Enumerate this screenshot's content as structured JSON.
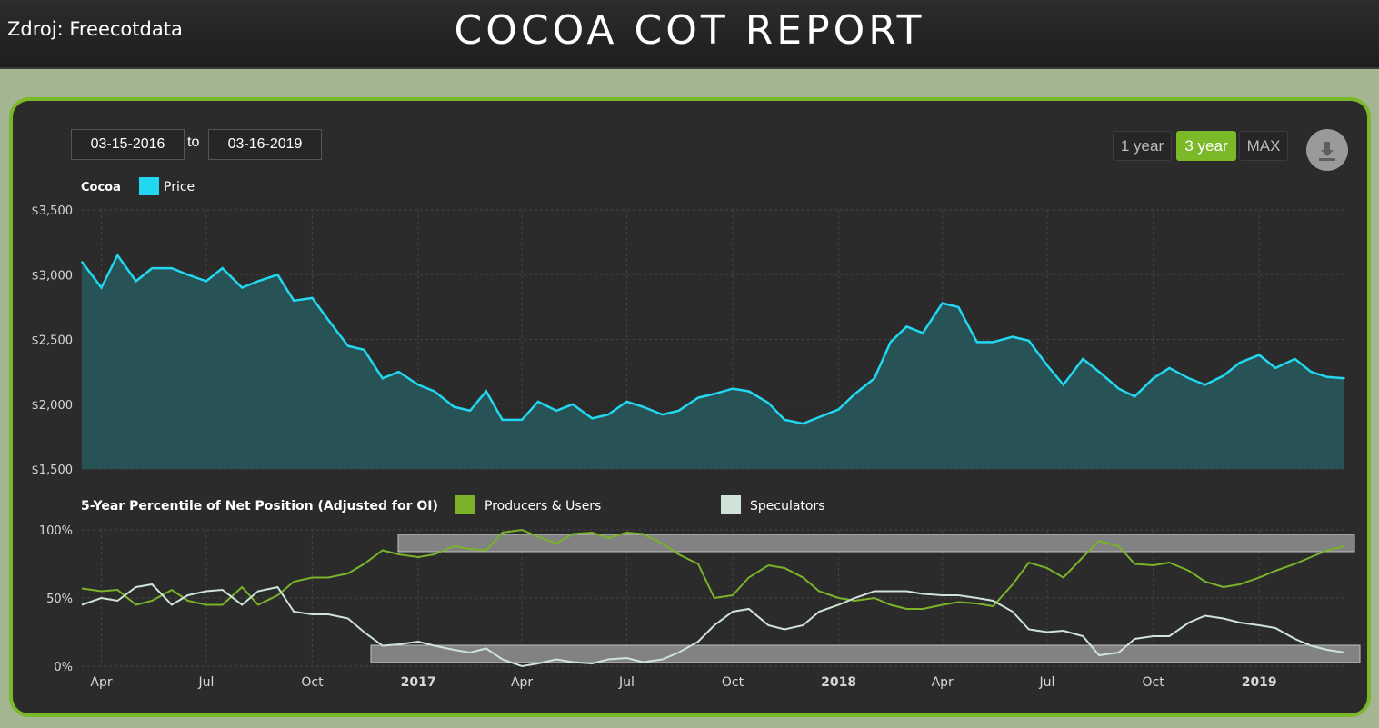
{
  "header": {
    "source": "Zdroj: Freecotdata",
    "title": "COCOA COT REPORT"
  },
  "controls": {
    "date_from": "03-15-2016",
    "to_label": "to",
    "date_to": "03-16-2019",
    "ranges": [
      "1 year",
      "3 year",
      "MAX"
    ],
    "active_range": "3 year",
    "download_icon": "download-icon"
  },
  "colors": {
    "accent": "#7cb929",
    "price_line": "#22d8f0",
    "price_fill": "#275458",
    "producers": "#7ab32a",
    "speculators": "#cfe3d8",
    "band": "#8a8a8a"
  },
  "chart_data": [
    {
      "type": "area",
      "legend_title": "Cocoa",
      "series": [
        {
          "name": "Price"
        }
      ],
      "ylim": [
        1500,
        3500
      ],
      "y_ticks": [
        "$3,500",
        "$3,000",
        "$2,500",
        "$2,000",
        "$1,500"
      ],
      "x_range": [
        "2016-03-15",
        "2019-03-16"
      ],
      "x_ticks": [
        "Apr",
        "Jul",
        "Oct",
        "2017",
        "Apr",
        "Jul",
        "Oct",
        "2018",
        "Apr",
        "Jul",
        "Oct",
        "2019"
      ],
      "x": [
        "2016-03-15",
        "2016-04-01",
        "2016-04-15",
        "2016-05-01",
        "2016-05-15",
        "2016-06-01",
        "2016-06-15",
        "2016-07-01",
        "2016-07-15",
        "2016-08-01",
        "2016-08-15",
        "2016-09-01",
        "2016-09-15",
        "2016-10-01",
        "2016-10-15",
        "2016-11-01",
        "2016-11-15",
        "2016-12-01",
        "2016-12-15",
        "2017-01-01",
        "2017-01-15",
        "2017-02-01",
        "2017-02-15",
        "2017-03-01",
        "2017-03-15",
        "2017-04-01",
        "2017-04-15",
        "2017-05-01",
        "2017-05-15",
        "2017-06-01",
        "2017-06-15",
        "2017-07-01",
        "2017-07-15",
        "2017-08-01",
        "2017-08-15",
        "2017-09-01",
        "2017-09-15",
        "2017-10-01",
        "2017-10-15",
        "2017-11-01",
        "2017-11-15",
        "2017-12-01",
        "2017-12-15",
        "2018-01-01",
        "2018-01-15",
        "2018-02-01",
        "2018-02-15",
        "2018-03-01",
        "2018-03-15",
        "2018-04-01",
        "2018-04-15",
        "2018-05-01",
        "2018-05-15",
        "2018-06-01",
        "2018-06-15",
        "2018-07-01",
        "2018-07-15",
        "2018-08-01",
        "2018-08-15",
        "2018-09-01",
        "2018-09-15",
        "2018-10-01",
        "2018-10-15",
        "2018-11-01",
        "2018-11-15",
        "2018-12-01",
        "2018-12-15",
        "2019-01-01",
        "2019-01-15",
        "2019-02-01",
        "2019-02-15",
        "2019-03-01",
        "2019-03-16"
      ],
      "values": [
        3100,
        2900,
        3150,
        2950,
        3050,
        3050,
        3000,
        2950,
        3050,
        2900,
        2950,
        3000,
        2800,
        2820,
        2650,
        2450,
        2420,
        2200,
        2250,
        2150,
        2100,
        1980,
        1950,
        2100,
        1880,
        1880,
        2020,
        1950,
        2000,
        1890,
        1920,
        2020,
        1980,
        1920,
        1950,
        2050,
        2080,
        2120,
        2100,
        2010,
        1880,
        1850,
        1900,
        1960,
        2080,
        2200,
        2480,
        2600,
        2550,
        2780,
        2750,
        2480,
        2480,
        2520,
        2490,
        2300,
        2150,
        2350,
        2250,
        2120,
        2060,
        2200,
        2280,
        2200,
        2150,
        2220,
        2320,
        2380,
        2280,
        2350,
        2250,
        2210,
        2200
      ]
    },
    {
      "type": "line",
      "legend_title": "5-Year Percentile of Net Position (Adjusted for OI)",
      "ylim": [
        0,
        100
      ],
      "y_ticks": [
        "100%",
        "50%",
        "0%"
      ],
      "series": [
        {
          "name": "Producers & Users",
          "values": [
            57,
            55,
            56,
            45,
            48,
            56,
            48,
            45,
            45,
            58,
            45,
            52,
            62,
            65,
            65,
            68,
            75,
            85,
            82,
            80,
            82,
            88,
            86,
            85,
            98,
            100,
            95,
            90,
            97,
            98,
            94,
            98,
            97,
            90,
            82,
            75,
            50,
            52,
            65,
            74,
            72,
            65,
            55,
            50,
            48,
            50,
            45,
            42,
            42,
            45,
            47,
            46,
            44,
            60,
            76,
            72,
            65,
            80,
            92,
            88,
            75,
            74,
            76,
            70,
            62,
            58,
            60,
            65,
            70,
            75,
            80,
            85,
            88
          ]
        },
        {
          "name": "Speculators",
          "values": [
            45,
            50,
            48,
            58,
            60,
            45,
            52,
            55,
            56,
            45,
            55,
            58,
            40,
            38,
            38,
            35,
            25,
            15,
            16,
            18,
            15,
            12,
            10,
            13,
            5,
            0,
            2,
            5,
            3,
            2,
            5,
            6,
            3,
            5,
            10,
            18,
            30,
            40,
            42,
            30,
            27,
            30,
            40,
            45,
            50,
            55,
            55,
            55,
            53,
            52,
            52,
            50,
            48,
            40,
            27,
            25,
            26,
            22,
            8,
            10,
            20,
            22,
            22,
            32,
            37,
            35,
            32,
            30,
            28,
            20,
            15,
            12,
            10
          ]
        }
      ]
    }
  ]
}
